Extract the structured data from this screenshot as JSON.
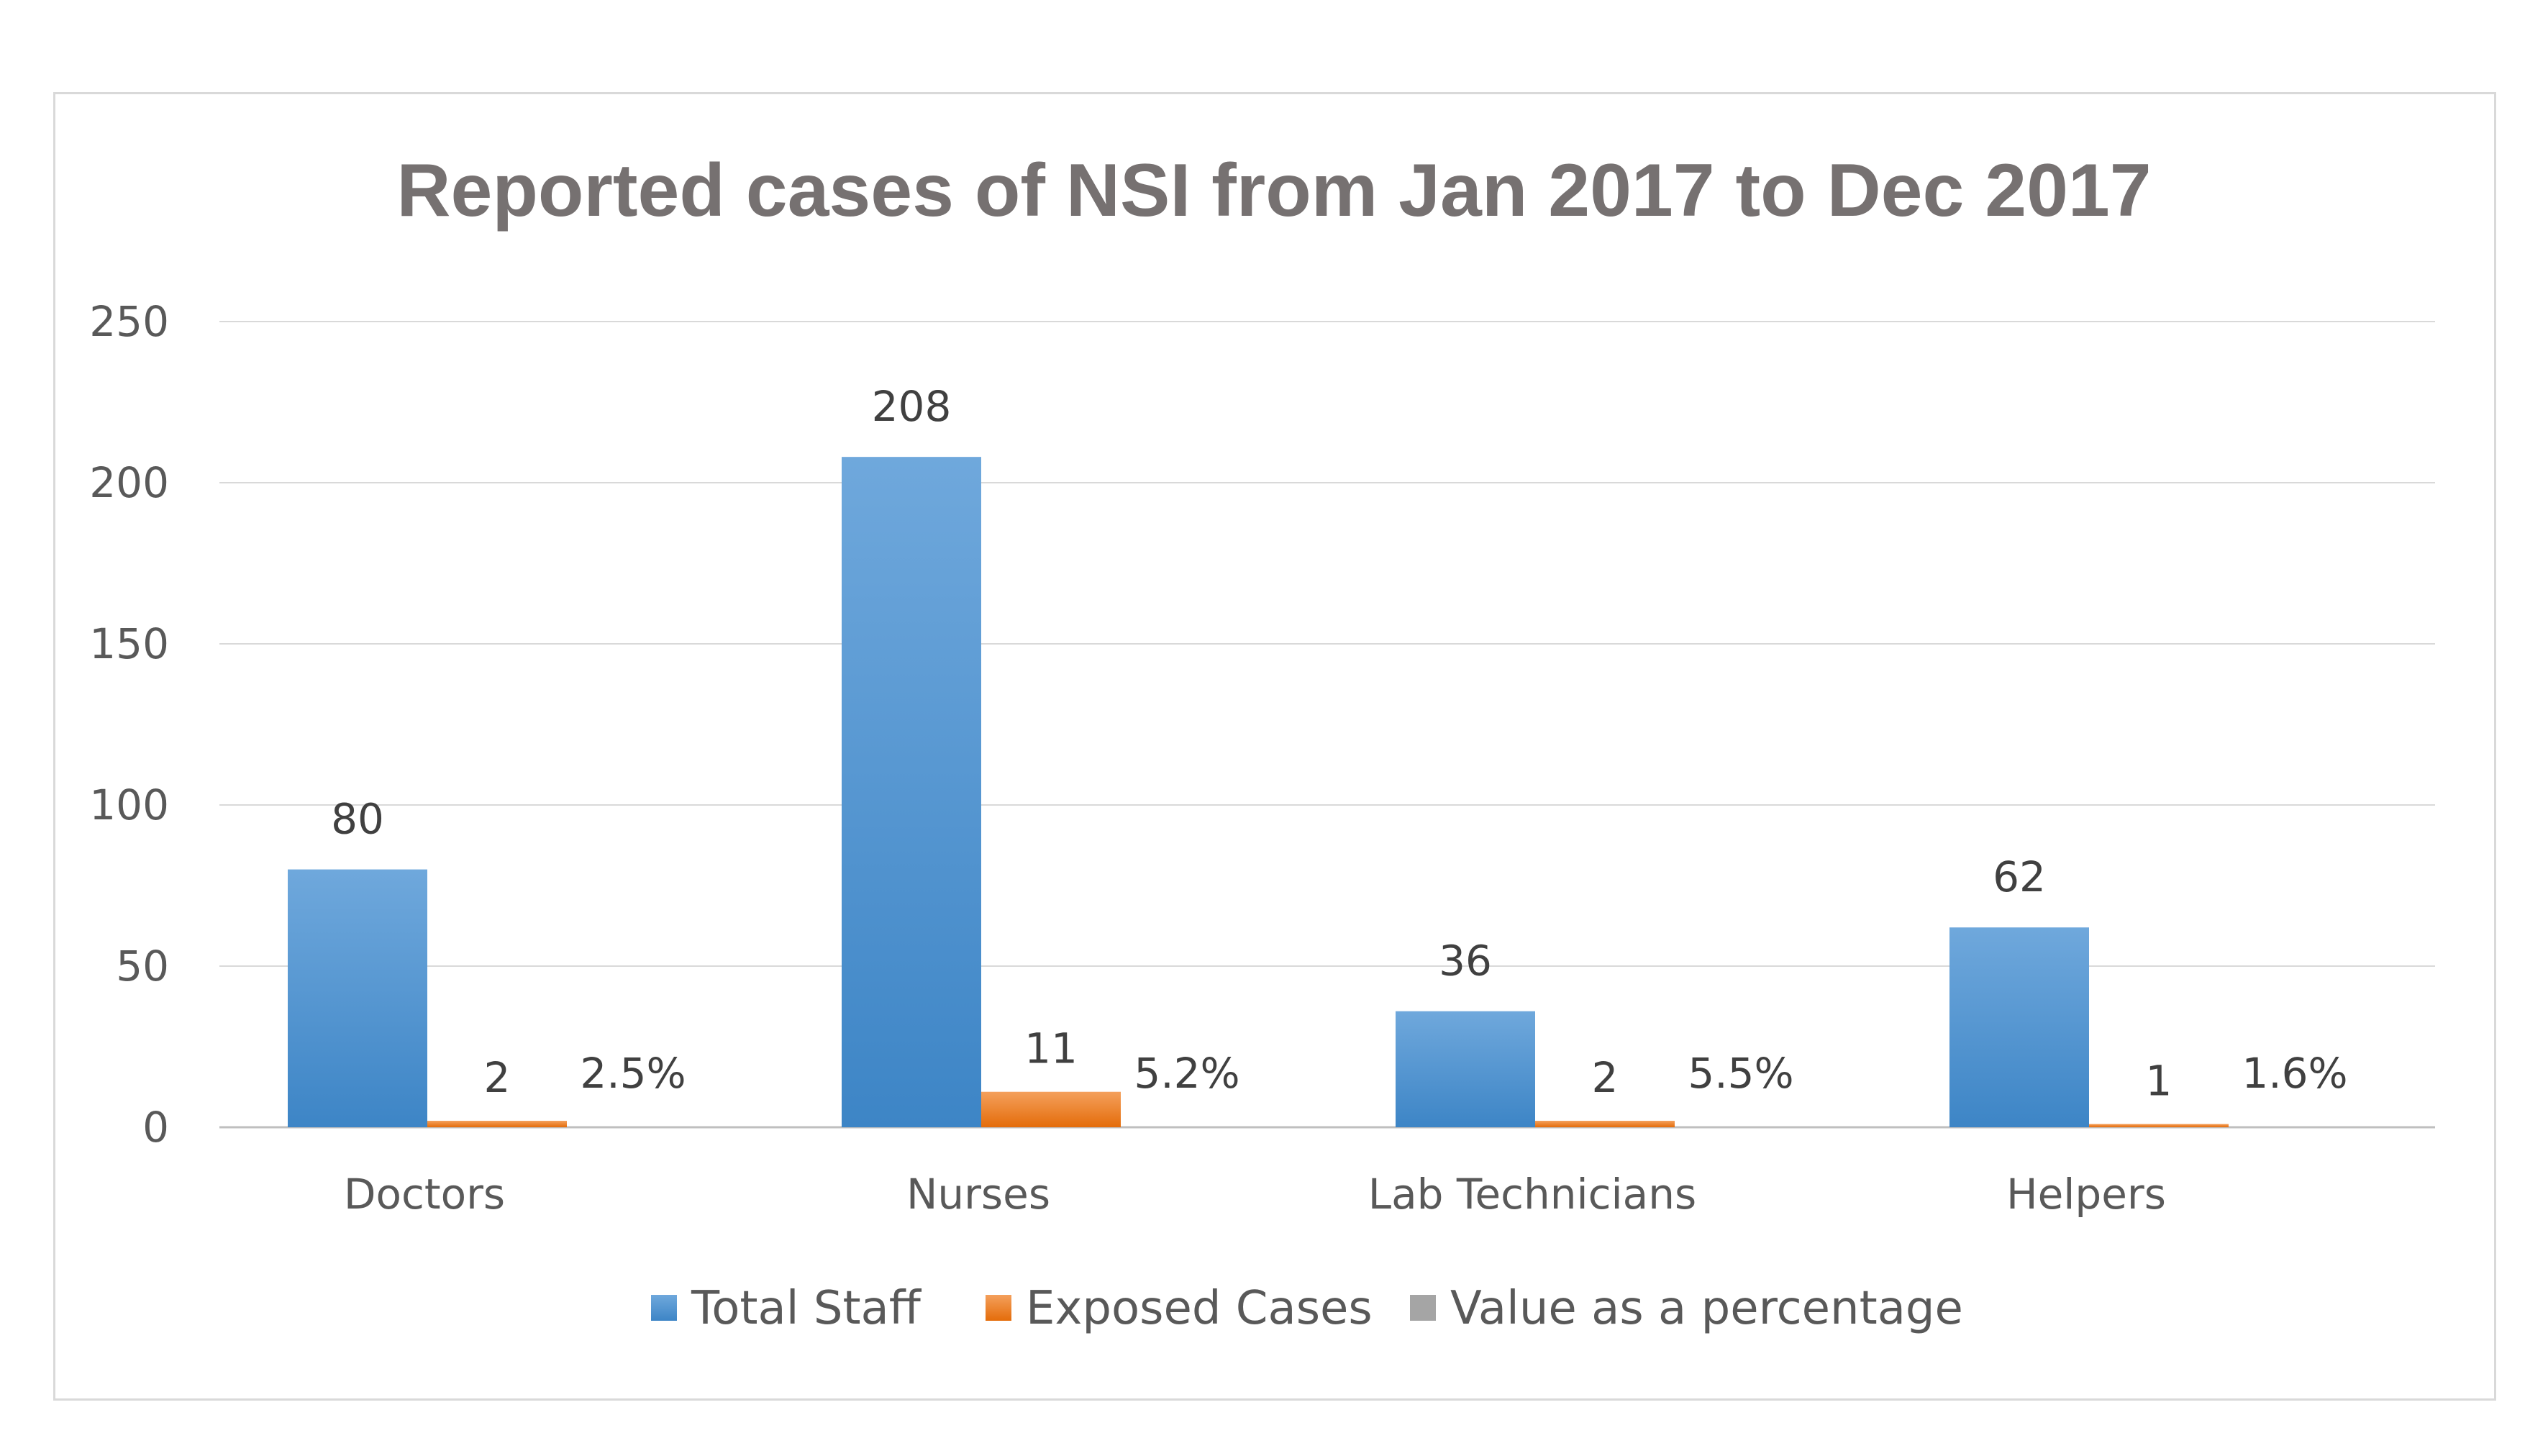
{
  "chart_data": {
    "type": "bar",
    "title": "Reported cases of NSI from Jan 2017 to Dec 2017",
    "xlabel": "",
    "ylabel": "",
    "ylim": [
      0,
      250
    ],
    "yticks": [
      0,
      50,
      100,
      150,
      200,
      250
    ],
    "grid": true,
    "legend_position": "bottom",
    "categories": [
      "Doctors",
      "Nurses",
      "Lab Technicians",
      "Helpers"
    ],
    "series": [
      {
        "name": "Total Staff",
        "values": [
          80,
          208,
          36,
          62
        ],
        "labels": [
          "80",
          "208",
          "36",
          "62"
        ],
        "color": "#4a90d2"
      },
      {
        "name": "Exposed Cases",
        "values": [
          2,
          11,
          2,
          1
        ],
        "labels": [
          "2",
          "11",
          "2",
          "1"
        ],
        "color": "#ed7d31"
      },
      {
        "name": "Value as a percentage",
        "values": [
          0.025,
          0.052,
          0.055,
          0.016
        ],
        "labels": [
          "2.5%",
          "5.2%",
          "5.5%",
          "1.6%"
        ],
        "color": "#a5a5a5"
      }
    ]
  }
}
